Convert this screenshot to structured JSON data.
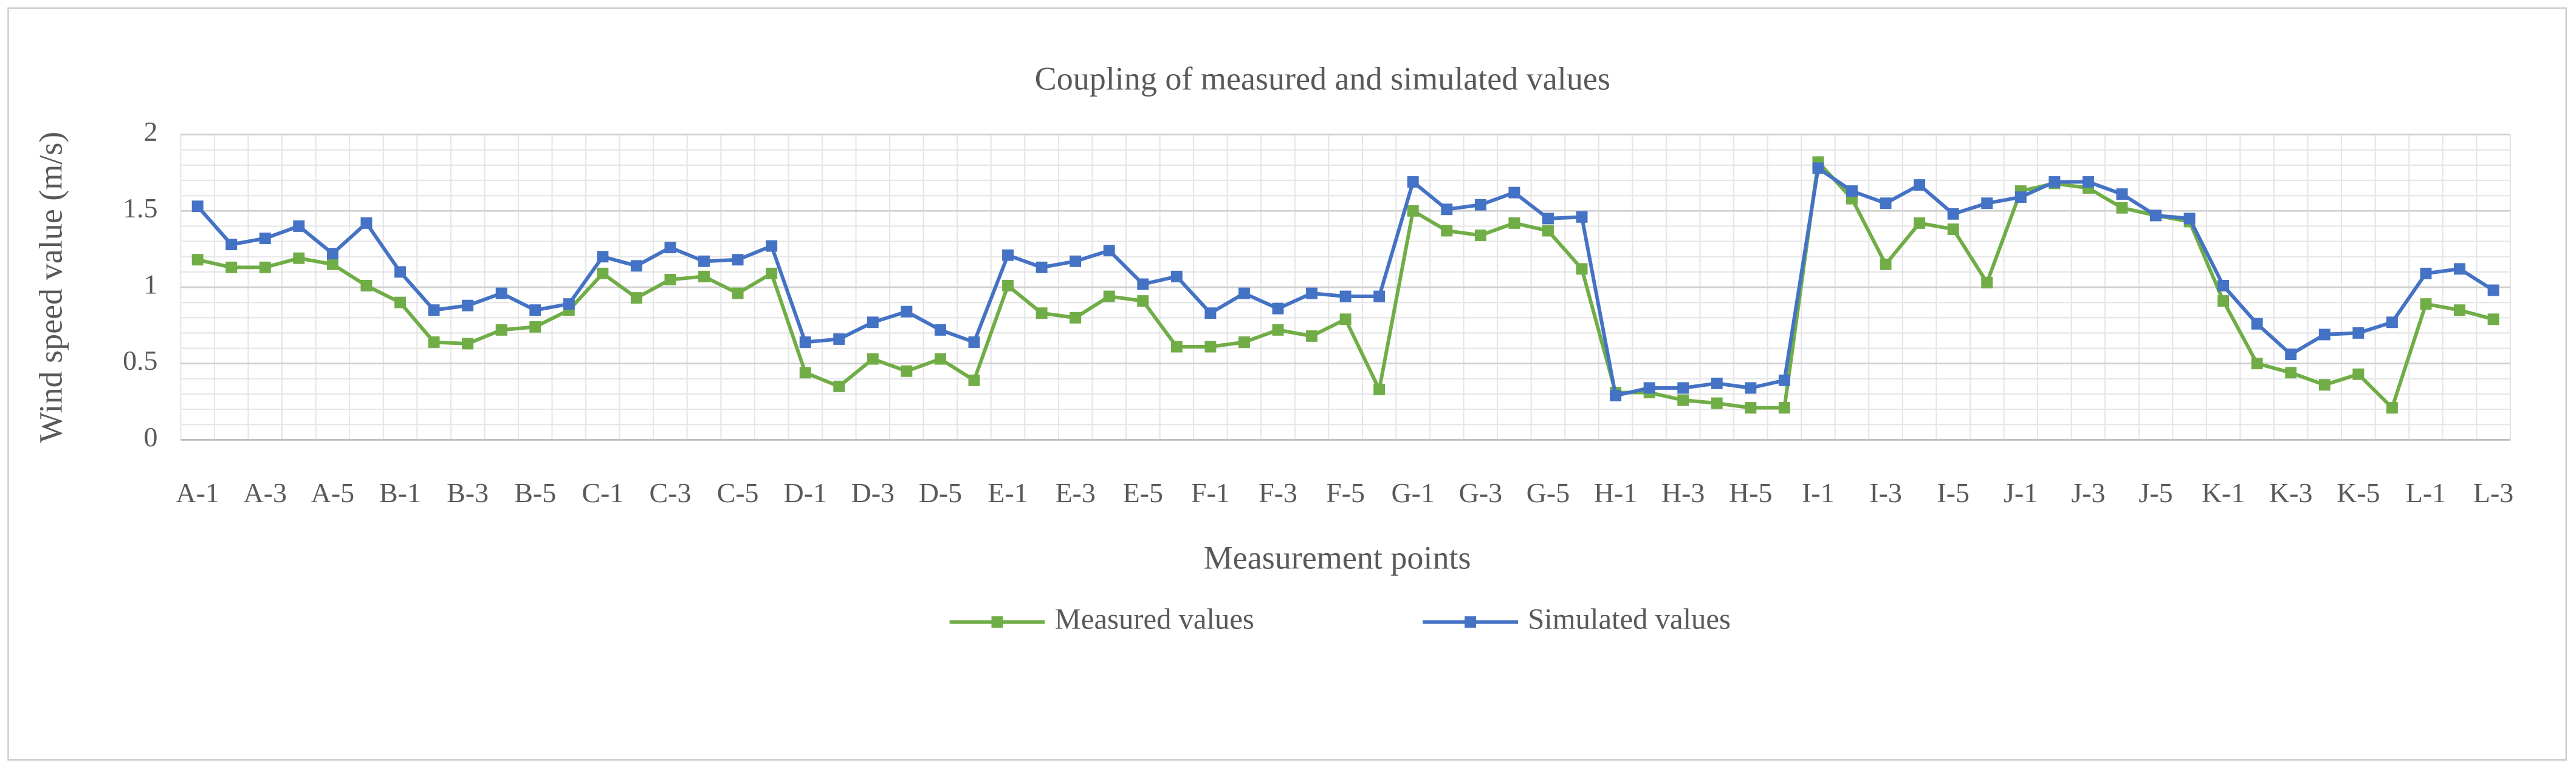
{
  "chart_data": {
    "type": "line",
    "title": "Coupling of measured and simulated values",
    "x_label": "Measurement points",
    "y_label": "Wind speed value (m/s)",
    "categories": [
      "A-1",
      null,
      "A-3",
      null,
      "A-5",
      null,
      "B-1",
      null,
      "B-3",
      null,
      "B-5",
      null,
      "C-1",
      null,
      "C-3",
      null,
      "C-5",
      null,
      "D-1",
      null,
      "D-3",
      null,
      "D-5",
      null,
      "E-1",
      null,
      "E-3",
      null,
      "E-5",
      null,
      "F-1",
      null,
      "F-3",
      null,
      "F-5",
      null,
      "G-1",
      null,
      "G-3",
      null,
      "G-5",
      null,
      "H-1",
      null,
      "H-3",
      null,
      "H-5",
      null,
      "I-1",
      null,
      "I-3",
      null,
      "I-5",
      null,
      "J-1",
      null,
      "J-3",
      null,
      "J-5",
      null,
      "K-1",
      null,
      "K-3",
      null,
      "K-5",
      null,
      "L-1",
      null,
      "L-3"
    ],
    "series": [
      {
        "name": "Measured  values",
        "color": "#70ad47",
        "values": [
          1.18,
          1.13,
          1.13,
          1.19,
          1.15,
          1.01,
          0.9,
          0.64,
          0.63,
          0.72,
          0.74,
          0.85,
          1.09,
          0.93,
          1.05,
          1.07,
          0.96,
          1.09,
          0.44,
          0.35,
          0.53,
          0.45,
          0.53,
          0.39,
          1.01,
          0.83,
          0.8,
          0.94,
          0.91,
          0.61,
          0.61,
          0.64,
          0.72,
          0.68,
          0.79,
          0.33,
          1.5,
          1.37,
          1.34,
          1.42,
          1.37,
          1.12,
          0.31,
          0.31,
          0.26,
          0.24,
          0.21,
          0.21,
          1.82,
          1.58,
          1.15,
          1.42,
          1.38,
          1.03,
          1.63,
          1.68,
          1.65,
          1.52,
          1.47,
          1.43,
          0.91,
          0.5,
          0.44,
          0.36,
          0.43,
          0.21,
          0.89,
          0.85,
          0.79
        ]
      },
      {
        "name": "Simulated values",
        "color": "#4472c4",
        "values": [
          1.53,
          1.28,
          1.32,
          1.4,
          1.22,
          1.42,
          1.1,
          0.85,
          0.88,
          0.96,
          0.85,
          0.89,
          1.2,
          1.14,
          1.26,
          1.17,
          1.18,
          1.27,
          0.64,
          0.66,
          0.77,
          0.84,
          0.72,
          0.64,
          1.21,
          1.13,
          1.17,
          1.24,
          1.02,
          1.07,
          0.83,
          0.96,
          0.86,
          0.96,
          0.94,
          0.94,
          1.69,
          1.51,
          1.54,
          1.62,
          1.45,
          1.46,
          0.29,
          0.34,
          0.34,
          0.37,
          0.34,
          0.39,
          1.78,
          1.63,
          1.55,
          1.67,
          1.48,
          1.55,
          1.59,
          1.69,
          1.69,
          1.61,
          1.47,
          1.45,
          1.01,
          0.76,
          0.56,
          0.69,
          0.7,
          0.77,
          1.09,
          1.12,
          0.98
        ]
      }
    ],
    "ylim": [
      0,
      2
    ],
    "yticks": [
      0,
      0.5,
      1,
      1.5,
      2
    ],
    "grid": true,
    "legend": "bottom"
  }
}
